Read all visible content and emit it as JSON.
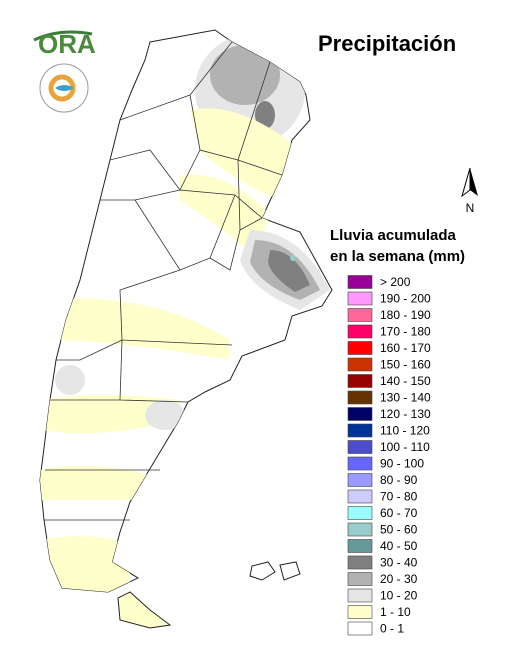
{
  "title": "Precipitación",
  "logo": "ORA",
  "north": "N",
  "legend": {
    "title": [
      "Lluvia acumulada",
      "en la semana (mm)"
    ],
    "items": [
      {
        "label": "> 200",
        "color": "#990099"
      },
      {
        "label": "190 - 200",
        "color": "#ff99ff"
      },
      {
        "label": "180 - 190",
        "color": "#ff6699"
      },
      {
        "label": "170 - 180",
        "color": "#ff0066"
      },
      {
        "label": "160 - 170",
        "color": "#ff0000"
      },
      {
        "label": "150 - 160",
        "color": "#cc3300"
      },
      {
        "label": "140 - 150",
        "color": "#990000"
      },
      {
        "label": "130 - 140",
        "color": "#663300"
      },
      {
        "label": "120 - 130",
        "color": "#000066"
      },
      {
        "label": "110 - 120",
        "color": "#003399"
      },
      {
        "label": "100 - 110",
        "color": "#4d4dcc"
      },
      {
        "label": "90 - 100",
        "color": "#6666ff"
      },
      {
        "label": "80 - 90",
        "color": "#9999ff"
      },
      {
        "label": "70 - 80",
        "color": "#ccccff"
      },
      {
        "label": "60 - 70",
        "color": "#99ffff"
      },
      {
        "label": "50 - 60",
        "color": "#99cccc"
      },
      {
        "label": "40 - 50",
        "color": "#669999"
      },
      {
        "label": "30 - 40",
        "color": "#808080"
      },
      {
        "label": "20 - 30",
        "color": "#b2b2b2"
      },
      {
        "label": "10 - 20",
        "color": "#e6e6e6"
      },
      {
        "label": "1 - 10",
        "color": "#ffffcc"
      },
      {
        "label": "0 - 1",
        "color": "#ffffff"
      }
    ]
  }
}
